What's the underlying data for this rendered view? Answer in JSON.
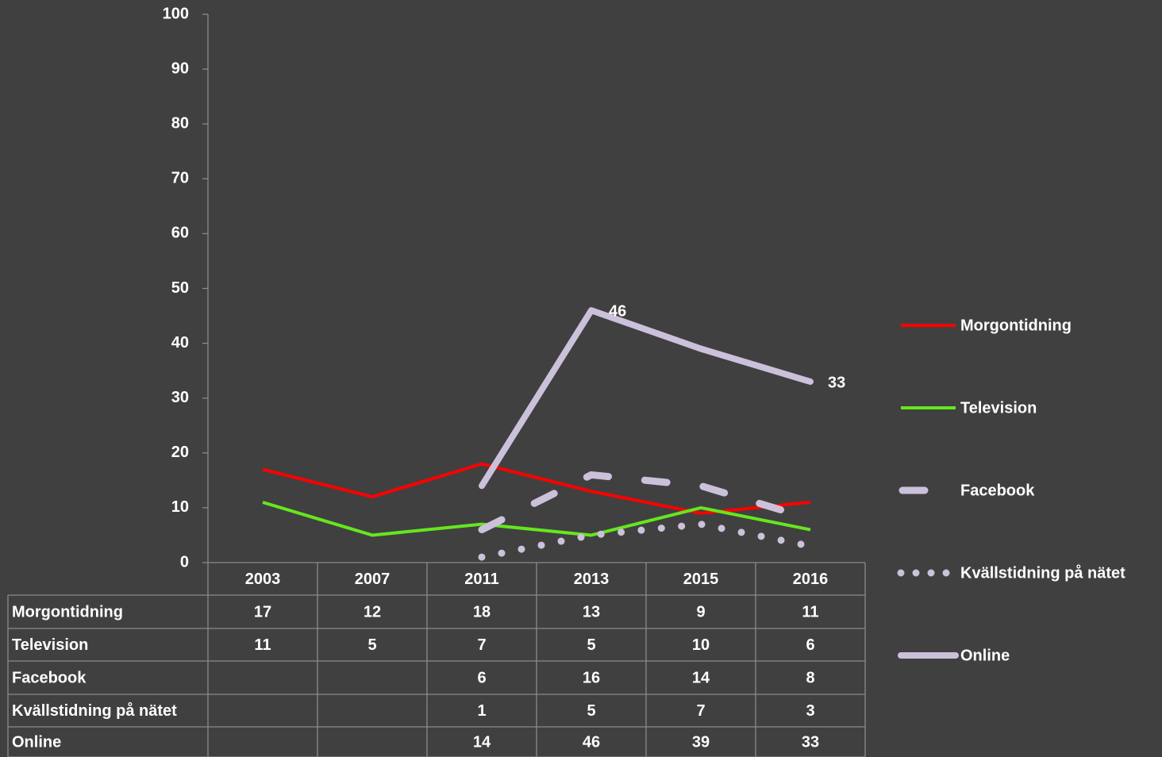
{
  "chart_data": {
    "type": "line",
    "categories": [
      "2003",
      "2007",
      "2011",
      "2013",
      "2015",
      "2016"
    ],
    "series": [
      {
        "name": "Morgontidning",
        "color": "#ff0000",
        "line_style": "solid",
        "values": [
          17,
          12,
          18,
          13,
          9,
          11
        ]
      },
      {
        "name": "Television",
        "color": "#66e61f",
        "line_style": "solid",
        "values": [
          11,
          5,
          7,
          5,
          10,
          6
        ]
      },
      {
        "name": "Facebook",
        "color": "#ccc1da",
        "line_style": "dashed",
        "values": [
          null,
          null,
          6,
          16,
          14,
          8
        ]
      },
      {
        "name": "Kvällstidning på nätet",
        "color": "#ccc1da",
        "line_style": "dotted",
        "values": [
          null,
          null,
          1,
          5,
          7,
          3
        ]
      },
      {
        "name": "Online",
        "color": "#ccc1da",
        "line_style": "thick",
        "values": [
          null,
          null,
          14,
          46,
          39,
          33
        ],
        "value_labels": [
          null,
          null,
          null,
          "46",
          null,
          "33"
        ]
      }
    ],
    "ylim": [
      0,
      100
    ],
    "yticks": [
      0,
      10,
      20,
      30,
      40,
      50,
      60,
      70,
      80,
      90,
      100
    ],
    "legend": "right",
    "data_table": true
  }
}
